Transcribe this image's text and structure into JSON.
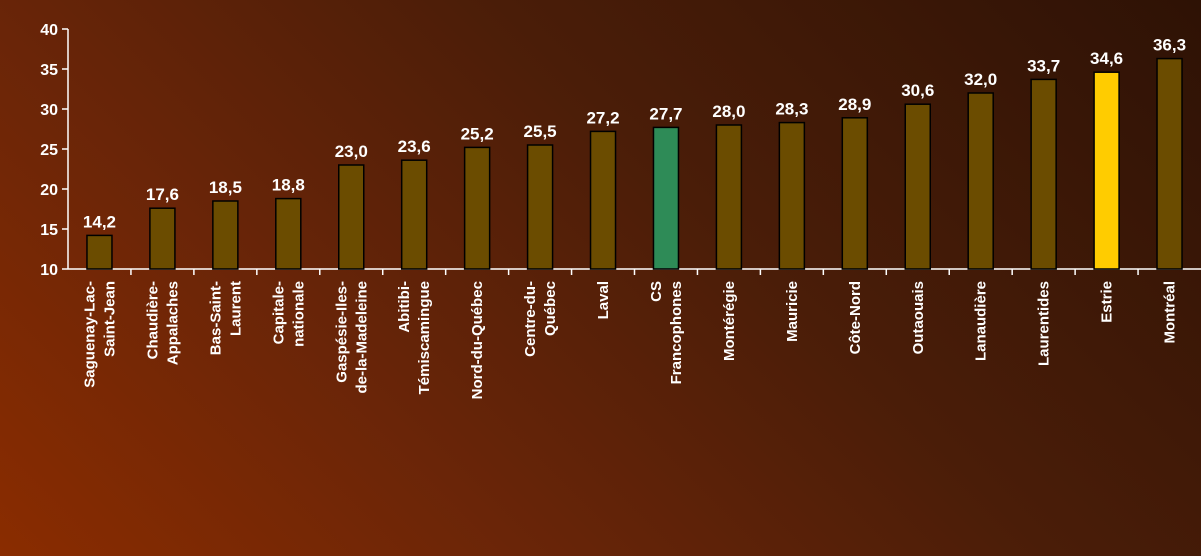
{
  "chart_data": {
    "type": "bar",
    "title": "",
    "xlabel": "",
    "ylabel": "",
    "ylim": [
      10,
      40
    ],
    "yticks": [
      10,
      15,
      20,
      25,
      30,
      35,
      40
    ],
    "grid": false,
    "legend": "none",
    "categories": [
      "Saguenay-Lac-Saint-Jean",
      "Chaudière-Appalaches",
      "Bas-Saint-Laurent",
      "Capitale-nationale",
      "Gaspésie-Iles-de-la-Madeleine",
      "Abitibi-Témiscamingue",
      "Nord-du-Québec",
      "Centre-du-Québec",
      "Laval",
      "CS Francophones",
      "Montérégie",
      "Mauricie",
      "Côte-Nord",
      "Outaouais",
      "Lanaudière",
      "Laurentides",
      "Estrie",
      "Montréal"
    ],
    "category_lines": [
      [
        "Saguenay-Lac-",
        "Saint-Jean"
      ],
      [
        "Chaudière-",
        "Appalaches"
      ],
      [
        "Bas-Saint-",
        "Laurent"
      ],
      [
        "Capitale-",
        "nationale"
      ],
      [
        "Gaspésie-Iles-",
        "de-la-Madeleine"
      ],
      [
        "Abitibi-",
        "Témiscamingue"
      ],
      [
        "Nord-du-Québec"
      ],
      [
        "Centre-du-",
        "Québec"
      ],
      [
        "Laval"
      ],
      [
        "CS",
        "Francophones"
      ],
      [
        "Montérégie"
      ],
      [
        "Mauricie"
      ],
      [
        "Côte-Nord"
      ],
      [
        "Outaouais"
      ],
      [
        "Lanaudière"
      ],
      [
        "Laurentides"
      ],
      [
        "Estrie"
      ],
      [
        "Montréal"
      ]
    ],
    "values": [
      14.2,
      17.6,
      18.5,
      18.8,
      23.0,
      23.6,
      25.2,
      25.5,
      27.2,
      27.7,
      28.0,
      28.3,
      28.9,
      30.6,
      32.0,
      33.7,
      34.6,
      36.3
    ],
    "value_labels": [
      "14,2",
      "17,6",
      "18,5",
      "18,8",
      "23,0",
      "23,6",
      "25,2",
      "25,5",
      "27,2",
      "27,7",
      "28,0",
      "28,3",
      "28,9",
      "30,6",
      "32,0",
      "33,7",
      "34,6",
      "36,3"
    ],
    "colors": {
      "default_bar": "#6b4c00",
      "highlight_green": "#2e8b57",
      "highlight_yellow": "#ffcc00",
      "bar_outline": "#000000",
      "axis": "#ffffff",
      "text": "#ffffff"
    },
    "highlights": {
      "CS Francophones": "highlight_green",
      "Estrie": "highlight_yellow"
    }
  }
}
